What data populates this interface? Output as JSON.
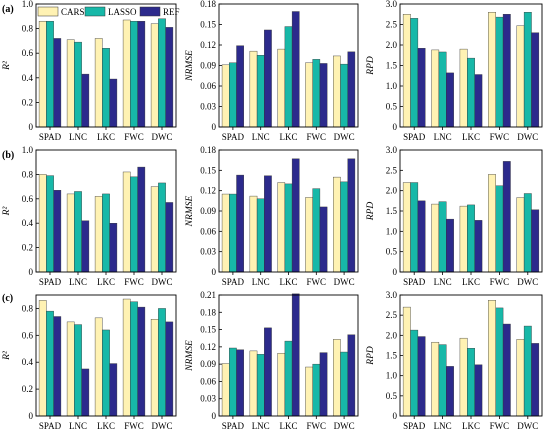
{
  "row_labels": [
    "(a)",
    "(b)",
    "(c)"
  ],
  "legend": {
    "entries": [
      {
        "label": "CARS",
        "color": "#fff2b3"
      },
      {
        "label": "LASSO",
        "color": "#17b8a8"
      },
      {
        "label": "REF",
        "color": "#2c2a8c"
      }
    ]
  },
  "chart_data": [
    {
      "type": "bar",
      "ylabel": "R²",
      "ylim": [
        0,
        1.0
      ],
      "yticks": [
        "0",
        "0.2",
        "0.4",
        "0.6",
        "0.8",
        "1.0"
      ],
      "categories": [
        "SPAD",
        "LNC",
        "LKC",
        "FWC",
        "DWC"
      ],
      "series": [
        {
          "name": "CARS",
          "values": [
            0.86,
            0.71,
            0.72,
            0.87,
            0.84
          ]
        },
        {
          "name": "LASSO",
          "values": [
            0.86,
            0.69,
            0.64,
            0.86,
            0.88
          ]
        },
        {
          "name": "REF",
          "values": [
            0.72,
            0.43,
            0.39,
            0.86,
            0.81
          ]
        }
      ]
    },
    {
      "type": "bar",
      "ylabel": "NRMSE",
      "ylim": [
        0,
        0.18
      ],
      "yticks": [
        "0",
        "0.03",
        "0.06",
        "0.09",
        "0.12",
        "0.15",
        "0.18"
      ],
      "categories": [
        "SPAD",
        "LNC",
        "LKC",
        "FWC",
        "DWC"
      ],
      "series": [
        {
          "name": "CARS",
          "values": [
            0.091,
            0.111,
            0.114,
            0.094,
            0.104
          ]
        },
        {
          "name": "LASSO",
          "values": [
            0.094,
            0.105,
            0.147,
            0.099,
            0.092
          ]
        },
        {
          "name": "REF",
          "values": [
            0.119,
            0.142,
            0.169,
            0.093,
            0.11
          ]
        }
      ]
    },
    {
      "type": "bar",
      "ylabel": "RPD",
      "ylim": [
        0,
        3.0
      ],
      "yticks": [
        "0",
        "0.5",
        "1.0",
        "1.5",
        "2.0",
        "2.5",
        "3.0"
      ],
      "categories": [
        "SPAD",
        "LNC",
        "LKC",
        "FWC",
        "DWC"
      ],
      "series": [
        {
          "name": "CARS",
          "values": [
            2.75,
            1.88,
            1.9,
            2.8,
            2.47
          ]
        },
        {
          "name": "LASSO",
          "values": [
            2.65,
            1.83,
            1.68,
            2.68,
            2.8
          ]
        },
        {
          "name": "REF",
          "values": [
            1.92,
            1.32,
            1.28,
            2.75,
            2.3
          ]
        }
      ]
    },
    {
      "type": "bar",
      "ylabel": "R²",
      "ylim": [
        0,
        1.0
      ],
      "yticks": [
        "0",
        "0.2",
        "0.4",
        "0.6",
        "0.8",
        "1.0"
      ],
      "categories": [
        "SPAD",
        "LNC",
        "LKC",
        "FWC",
        "DWC"
      ],
      "series": [
        {
          "name": "CARS",
          "values": [
            0.8,
            0.64,
            0.62,
            0.82,
            0.7
          ]
        },
        {
          "name": "LASSO",
          "values": [
            0.79,
            0.66,
            0.64,
            0.78,
            0.73
          ]
        },
        {
          "name": "REF",
          "values": [
            0.67,
            0.42,
            0.4,
            0.86,
            0.57
          ]
        }
      ]
    },
    {
      "type": "bar",
      "ylabel": "NRMSE",
      "ylim": [
        0,
        0.18
      ],
      "yticks": [
        "0",
        "0.03",
        "0.06",
        "0.09",
        "0.12",
        "0.15",
        "0.18"
      ],
      "categories": [
        "SPAD",
        "LNC",
        "LKC",
        "FWC",
        "DWC"
      ],
      "series": [
        {
          "name": "CARS",
          "values": [
            0.115,
            0.112,
            0.132,
            0.11,
            0.14
          ]
        },
        {
          "name": "LASSO",
          "values": [
            0.115,
            0.108,
            0.13,
            0.123,
            0.133
          ]
        },
        {
          "name": "REF",
          "values": [
            0.143,
            0.142,
            0.167,
            0.096,
            0.167
          ]
        }
      ]
    },
    {
      "type": "bar",
      "ylabel": "RPD",
      "ylim": [
        0,
        3.0
      ],
      "yticks": [
        "0",
        "0.5",
        "1.0",
        "1.5",
        "2.0",
        "2.5",
        "3.0"
      ],
      "categories": [
        "SPAD",
        "LNC",
        "LKC",
        "FWC",
        "DWC"
      ],
      "series": [
        {
          "name": "CARS",
          "values": [
            2.2,
            1.67,
            1.62,
            2.4,
            1.83
          ]
        },
        {
          "name": "LASSO",
          "values": [
            2.2,
            1.73,
            1.65,
            2.12,
            1.93
          ]
        },
        {
          "name": "REF",
          "values": [
            1.75,
            1.3,
            1.27,
            2.72,
            1.53
          ]
        }
      ]
    },
    {
      "type": "bar",
      "ylabel": "R²",
      "ylim": [
        0,
        0.9
      ],
      "yticks": [
        "0",
        "0.2",
        "0.4",
        "0.6",
        "0.8"
      ],
      "categories": [
        "SPAD",
        "LNC",
        "LKC",
        "FWC",
        "DWC"
      ],
      "series": [
        {
          "name": "CARS",
          "values": [
            0.86,
            0.7,
            0.73,
            0.87,
            0.72
          ]
        },
        {
          "name": "LASSO",
          "values": [
            0.78,
            0.68,
            0.64,
            0.85,
            0.8
          ]
        },
        {
          "name": "REF",
          "values": [
            0.74,
            0.35,
            0.39,
            0.81,
            0.7
          ]
        }
      ]
    },
    {
      "type": "bar",
      "ylabel": "NRMSE",
      "ylim": [
        0,
        0.21
      ],
      "yticks": [
        "0",
        "0.03",
        "0.06",
        "0.09",
        "0.12",
        "0.15",
        "0.18",
        "0.21"
      ],
      "categories": [
        "SPAD",
        "LNC",
        "LKC",
        "FWC",
        "DWC"
      ],
      "series": [
        {
          "name": "CARS",
          "values": [
            0.091,
            0.113,
            0.109,
            0.085,
            0.133
          ]
        },
        {
          "name": "LASSO",
          "values": [
            0.118,
            0.107,
            0.13,
            0.09,
            0.111
          ]
        },
        {
          "name": "REF",
          "values": [
            0.115,
            0.153,
            0.212,
            0.11,
            0.141
          ]
        }
      ]
    },
    {
      "type": "bar",
      "ylabel": "RPD",
      "ylim": [
        0,
        3.0
      ],
      "yticks": [
        "0",
        "0.5",
        "1.0",
        "1.5",
        "2.0",
        "2.5",
        "3.0"
      ],
      "categories": [
        "SPAD",
        "LNC",
        "LKC",
        "FWC",
        "DWC"
      ],
      "series": [
        {
          "name": "CARS",
          "values": [
            2.7,
            1.83,
            1.93,
            2.87,
            1.9
          ]
        },
        {
          "name": "LASSO",
          "values": [
            2.13,
            1.77,
            1.68,
            2.68,
            2.23
          ]
        },
        {
          "name": "REF",
          "values": [
            1.97,
            1.23,
            1.27,
            2.28,
            1.8
          ]
        }
      ]
    }
  ]
}
